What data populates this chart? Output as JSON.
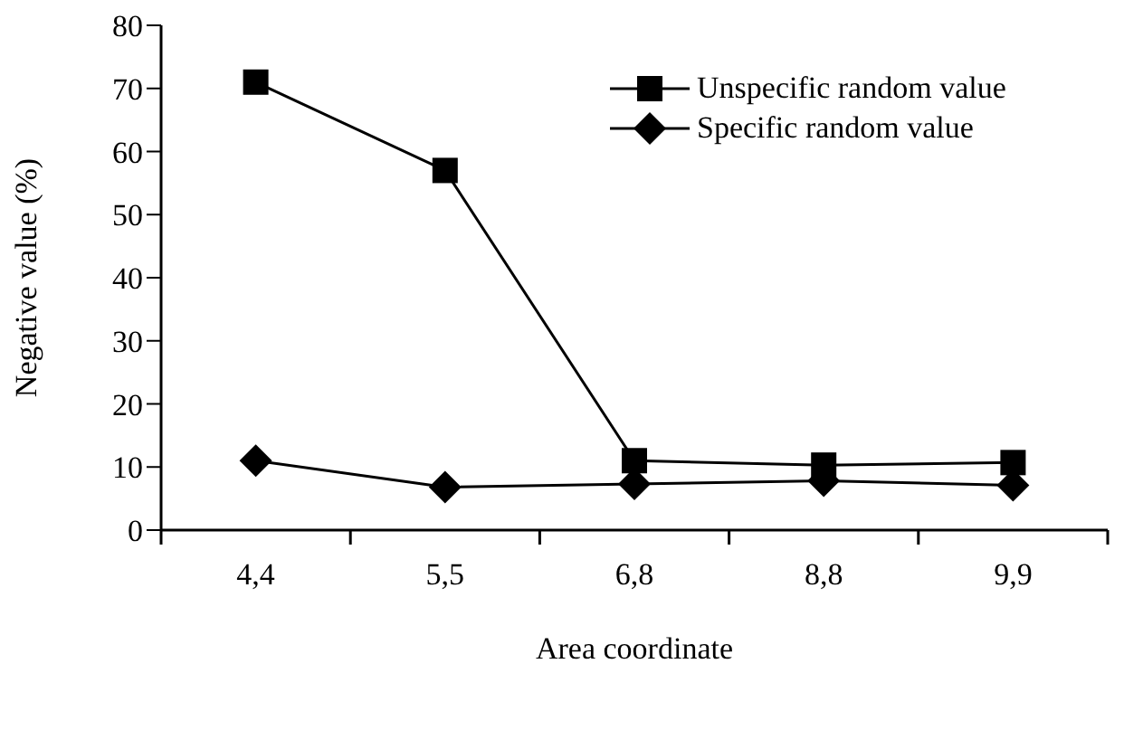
{
  "chart_data": {
    "type": "line",
    "xlabel": "Area coordinate",
    "ylabel": "Negative value (%)",
    "categories": [
      "4,4",
      "5,5",
      "6,8",
      "8,8",
      "9,9"
    ],
    "series": [
      {
        "name": "Unspecific random value",
        "color": "#000000",
        "marker": "square",
        "values": [
          71,
          57,
          11,
          10.3,
          10.7
        ]
      },
      {
        "name": "Specific random value",
        "color": "#000000",
        "marker": "diamond",
        "values": [
          11,
          6.8,
          7.3,
          7.8,
          7.1
        ]
      }
    ],
    "ylim": [
      0,
      80
    ],
    "yticks": [
      0,
      10,
      20,
      30,
      40,
      50,
      60,
      70,
      80
    ],
    "grid": false,
    "legend": "top right",
    "line_style": "solid"
  }
}
